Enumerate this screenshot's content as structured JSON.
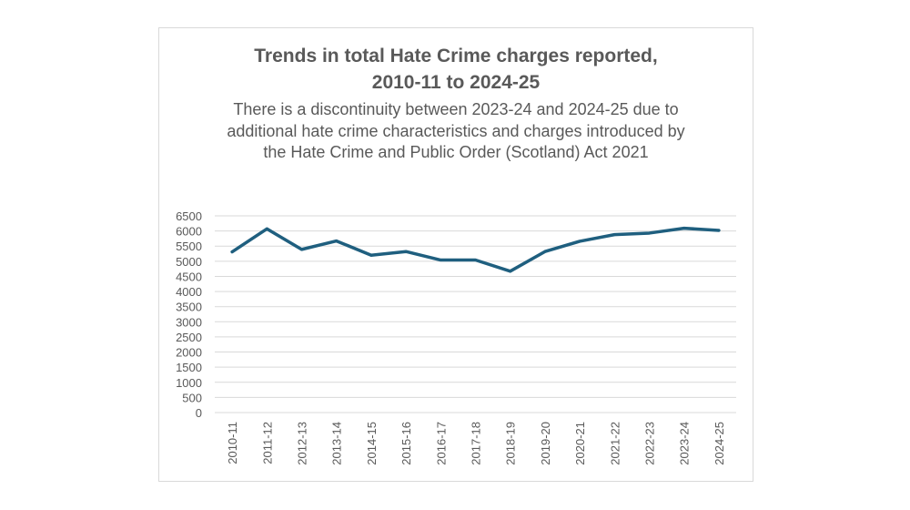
{
  "chart_data": {
    "type": "line",
    "title_line1": "Trends in total Hate Crime charges reported,",
    "title_line2": "2010-11 to 2024-25",
    "subtitle": "There is a discontinuity between 2023-24 and 2024-25 due to additional hate crime characteristics and charges introduced by the Hate Crime and Public Order (Scotland) Act 2021",
    "categories": [
      "2010-11",
      "2011-12",
      "2012-13",
      "2013-14",
      "2014-15",
      "2015-16",
      "2016-17",
      "2017-18",
      "2018-19",
      "2019-20",
      "2020-21",
      "2021-22",
      "2022-23",
      "2023-24",
      "2024-25"
    ],
    "series": [
      {
        "name": "Total hate crime charges",
        "values": [
          5310,
          6070,
          5390,
          5670,
          5200,
          5320,
          5040,
          5040,
          4670,
          5320,
          5660,
          5880,
          5930,
          6090,
          6020
        ],
        "color": "#1f5f7f"
      }
    ],
    "ylim": [
      0,
      6500
    ],
    "yticks": [
      "0",
      "500",
      "1000",
      "1500",
      "2000",
      "2500",
      "3000",
      "3500",
      "4000",
      "4500",
      "5000",
      "5500",
      "6000",
      "6500"
    ],
    "grid": true,
    "xlabel": "",
    "ylabel": ""
  }
}
